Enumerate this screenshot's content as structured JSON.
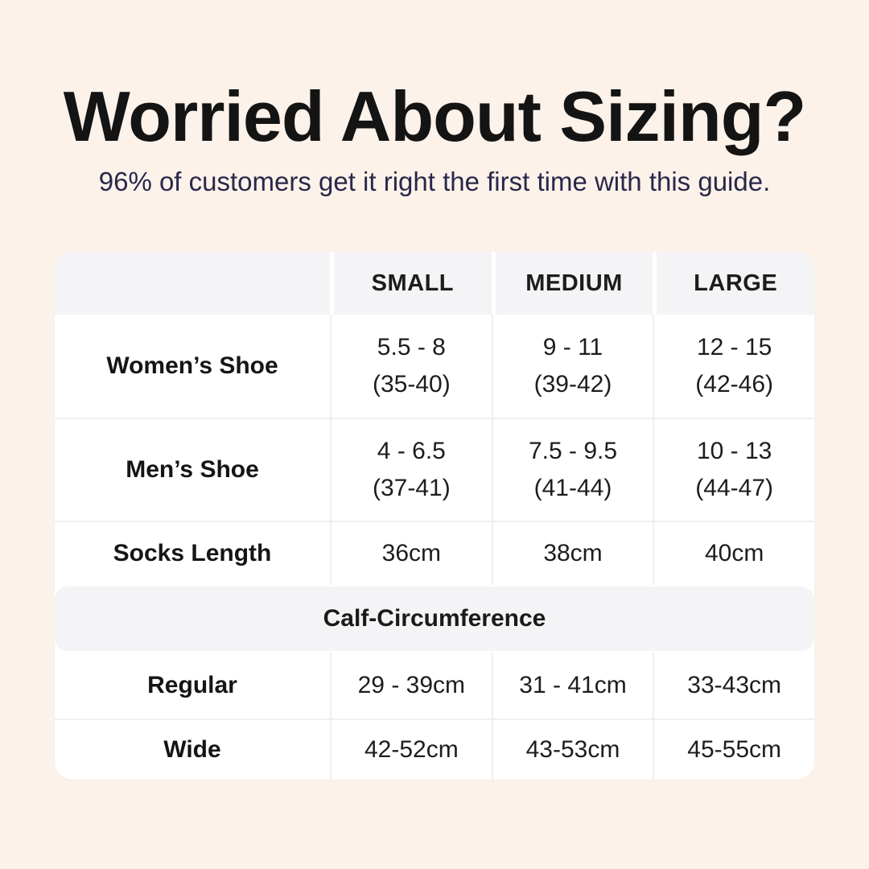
{
  "colors": {
    "page_background": "#fdf2ea",
    "card_background": "#ffffff",
    "header_band_gray": "#f4f3f5",
    "divider_gray": "#efeef0",
    "title_black": "#141414",
    "subtitle_navy": "#28284a"
  },
  "header": {
    "title": "Worried About Sizing?",
    "subtitle": "96% of customers get it right the first time with this guide."
  },
  "table": {
    "columns": [
      "",
      "SMALL",
      "MEDIUM",
      "LARGE"
    ],
    "rows": [
      {
        "label": "Women’s Shoe",
        "cells": [
          [
            "5.5 - 8",
            "(35-40)"
          ],
          [
            "9 - 11",
            "(39-42)"
          ],
          [
            "12 - 15",
            "(42-46)"
          ]
        ]
      },
      {
        "label": "Men’s Shoe",
        "cells": [
          [
            "4 - 6.5",
            "(37-41)"
          ],
          [
            "7.5 - 9.5",
            "(41-44)"
          ],
          [
            "10 - 13",
            "(44-47)"
          ]
        ]
      },
      {
        "label": "Socks Length",
        "cells": [
          "36cm",
          "38cm",
          "40cm"
        ]
      }
    ],
    "section_title": "Calf-Circumference",
    "calf_rows": [
      {
        "label": "Regular",
        "cells": [
          "29 - 39cm",
          "31 - 41cm",
          "33-43cm"
        ]
      },
      {
        "label": "Wide",
        "cells": [
          "42-52cm",
          "43-53cm",
          "45-55cm"
        ]
      }
    ]
  },
  "chart_data": {
    "type": "table",
    "title": "Worried About Sizing?",
    "subtitle": "96% of customers get it right the first time with this guide.",
    "columns": [
      "",
      "SMALL",
      "MEDIUM",
      "LARGE"
    ],
    "rows": [
      [
        "Women’s Shoe",
        "5.5 - 8 (35-40)",
        "9 - 11 (39-42)",
        "12 - 15 (42-46)"
      ],
      [
        "Men’s Shoe",
        "4 - 6.5 (37-41)",
        "7.5 - 9.5 (41-44)",
        "10 - 13 (44-47)"
      ],
      [
        "Socks Length",
        "36cm",
        "38cm",
        "40cm"
      ],
      [
        "Calf-Circumference",
        "",
        "",
        ""
      ],
      [
        "Regular",
        "29 - 39cm",
        "31 - 41cm",
        "33-43cm"
      ],
      [
        "Wide",
        "42-52cm",
        "43-53cm",
        "45-55cm"
      ]
    ]
  }
}
